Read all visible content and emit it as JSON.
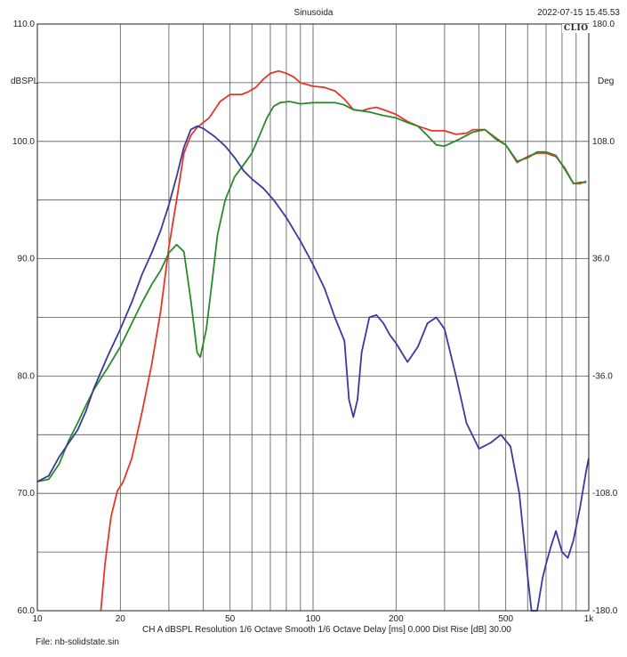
{
  "header": {
    "title": "Sinusoida",
    "datetime": "2022-07-15 15.45.53",
    "logo": "CLIO"
  },
  "footer": {
    "settings": "CH A  dBSPL  Resolution 1/6 Octave   Smooth 1/6 Octave   Delay [ms] 0.000   Dist Rise [dB] 30.00",
    "file": "File: nb-solidstate.sin"
  },
  "chart_data": {
    "type": "line",
    "title": "Sinusoida",
    "x_scale": "log",
    "xlim": [
      10,
      1000
    ],
    "x_tick_labels": [
      {
        "value": 10,
        "label": "10"
      },
      {
        "value": 20,
        "label": "20"
      },
      {
        "value": 50,
        "label": "50"
      },
      {
        "value": 100,
        "label": "100"
      },
      {
        "value": 200,
        "label": "200"
      },
      {
        "value": 500,
        "label": "500"
      },
      {
        "value": 1000,
        "label": "1k"
      }
    ],
    "y_left": {
      "unit": "dBSPL",
      "ylim": [
        60,
        110
      ],
      "tick_labels": [
        {
          "value": 60,
          "label": "60.0"
        },
        {
          "value": 70,
          "label": "70.0"
        },
        {
          "value": 80,
          "label": "80.0"
        },
        {
          "value": 90,
          "label": "90.0"
        },
        {
          "value": 100,
          "label": "100.0"
        },
        {
          "value": 110,
          "label": "110.0"
        }
      ]
    },
    "y_right": {
      "unit": "Deg",
      "ylim": [
        -180,
        180
      ],
      "tick_labels": [
        {
          "value": 180,
          "label": "180.0"
        },
        {
          "value": 108,
          "label": "108.0"
        },
        {
          "value": 36,
          "label": "36.0"
        },
        {
          "value": -36,
          "label": "-36.0"
        },
        {
          "value": -108,
          "label": "-108.0"
        },
        {
          "value": -180,
          "label": "-180.0"
        }
      ]
    },
    "grid": true,
    "series": [
      {
        "color": "#e8352b",
        "points": [
          [
            17.0,
            60
          ],
          [
            17.6,
            64
          ],
          [
            18.5,
            68
          ],
          [
            19.5,
            70.2
          ],
          [
            20.5,
            71
          ],
          [
            22,
            73
          ],
          [
            24,
            77
          ],
          [
            26,
            81
          ],
          [
            28,
            85.5
          ],
          [
            30,
            91
          ],
          [
            32,
            95
          ],
          [
            34,
            99
          ],
          [
            36,
            100.5
          ],
          [
            38,
            101.2
          ],
          [
            42,
            102
          ],
          [
            46,
            103.4
          ],
          [
            50,
            104
          ],
          [
            55,
            104
          ],
          [
            58,
            104.2
          ],
          [
            62,
            104.6
          ],
          [
            66,
            105.3
          ],
          [
            70,
            105.8
          ],
          [
            75,
            106
          ],
          [
            80,
            105.8
          ],
          [
            85,
            105.5
          ],
          [
            90,
            105
          ],
          [
            100,
            104.7
          ],
          [
            110,
            104.6
          ],
          [
            120,
            104.3
          ],
          [
            130,
            103.6
          ],
          [
            140,
            102.7
          ],
          [
            150,
            102.6
          ],
          [
            160,
            102.8
          ],
          [
            170,
            102.9
          ],
          [
            185,
            102.6
          ],
          [
            200,
            102.3
          ],
          [
            220,
            101.7
          ],
          [
            240,
            101.3
          ],
          [
            270,
            100.9
          ],
          [
            300,
            100.9
          ],
          [
            330,
            100.6
          ],
          [
            360,
            100.7
          ],
          [
            380,
            101
          ],
          [
            420,
            101
          ],
          [
            460,
            100.3
          ],
          [
            500,
            99.7
          ],
          [
            550,
            98.2
          ],
          [
            600,
            98.7
          ],
          [
            650,
            99
          ],
          [
            700,
            99
          ],
          [
            760,
            98.7
          ],
          [
            820,
            97.7
          ],
          [
            880,
            96.4
          ],
          [
            930,
            96.4
          ],
          [
            980,
            96.6
          ]
        ]
      },
      {
        "color": "#2a8a2a",
        "points": [
          [
            10,
            71
          ],
          [
            11,
            71.2
          ],
          [
            12,
            72.5
          ],
          [
            13,
            74.5
          ],
          [
            14,
            76
          ],
          [
            15,
            77.5
          ],
          [
            16,
            78.8
          ],
          [
            17,
            79.8
          ],
          [
            18,
            80.7
          ],
          [
            20,
            82.5
          ],
          [
            22,
            84.5
          ],
          [
            24,
            86.3
          ],
          [
            26,
            87.8
          ],
          [
            28,
            89
          ],
          [
            30,
            90.5
          ],
          [
            32,
            91.2
          ],
          [
            34,
            90.6
          ],
          [
            36,
            86.5
          ],
          [
            38,
            82
          ],
          [
            39,
            81.6
          ],
          [
            41,
            84
          ],
          [
            43,
            88
          ],
          [
            45,
            92
          ],
          [
            48,
            95
          ],
          [
            52,
            97
          ],
          [
            56,
            98
          ],
          [
            60,
            99
          ],
          [
            64,
            100.5
          ],
          [
            68,
            102
          ],
          [
            72,
            103
          ],
          [
            76,
            103.3
          ],
          [
            82,
            103.4
          ],
          [
            90,
            103.2
          ],
          [
            100,
            103.3
          ],
          [
            110,
            103.3
          ],
          [
            120,
            103.3
          ],
          [
            130,
            103.1
          ],
          [
            140,
            102.7
          ],
          [
            160,
            102.5
          ],
          [
            180,
            102.2
          ],
          [
            200,
            102
          ],
          [
            220,
            101.6
          ],
          [
            240,
            101.3
          ],
          [
            260,
            100.5
          ],
          [
            280,
            99.7
          ],
          [
            300,
            99.6
          ],
          [
            320,
            99.9
          ],
          [
            340,
            100.2
          ],
          [
            360,
            100.5
          ],
          [
            380,
            100.8
          ],
          [
            420,
            101
          ],
          [
            460,
            100.2
          ],
          [
            500,
            99.7
          ],
          [
            550,
            98.3
          ],
          [
            600,
            98.6
          ],
          [
            650,
            99.1
          ],
          [
            700,
            99.1
          ],
          [
            760,
            98.8
          ],
          [
            820,
            97.6
          ],
          [
            880,
            96.4
          ],
          [
            930,
            96.5
          ],
          [
            980,
            96.5
          ]
        ]
      },
      {
        "color": "#3a3a9e",
        "points": [
          [
            10,
            71
          ],
          [
            11,
            71.5
          ],
          [
            12,
            73.1
          ],
          [
            13,
            74.3
          ],
          [
            14,
            75.4
          ],
          [
            15,
            77
          ],
          [
            16,
            78.9
          ],
          [
            18,
            81.7
          ],
          [
            20,
            84
          ],
          [
            22,
            86.3
          ],
          [
            24,
            88.7
          ],
          [
            26,
            90.5
          ],
          [
            28,
            92.4
          ],
          [
            30,
            94.6
          ],
          [
            32,
            97
          ],
          [
            34,
            99.5
          ],
          [
            36,
            101
          ],
          [
            38,
            101.3
          ],
          [
            40,
            101.1
          ],
          [
            44,
            100.4
          ],
          [
            48,
            99.6
          ],
          [
            52,
            98.6
          ],
          [
            56,
            97.5
          ],
          [
            60,
            96.8
          ],
          [
            66,
            96
          ],
          [
            72,
            95
          ],
          [
            80,
            93.5
          ],
          [
            90,
            91.5
          ],
          [
            100,
            89.5
          ],
          [
            110,
            87.5
          ],
          [
            120,
            85
          ],
          [
            130,
            83
          ],
          [
            135,
            78
          ],
          [
            140,
            76.5
          ],
          [
            145,
            78
          ],
          [
            150,
            82
          ],
          [
            160,
            85
          ],
          [
            170,
            85.2
          ],
          [
            180,
            84.5
          ],
          [
            190,
            83.5
          ],
          [
            200,
            82.8
          ],
          [
            220,
            81.2
          ],
          [
            240,
            82.5
          ],
          [
            260,
            84.5
          ],
          [
            280,
            85
          ],
          [
            300,
            84
          ],
          [
            330,
            80
          ],
          [
            360,
            76
          ],
          [
            400,
            73.8
          ],
          [
            440,
            74.3
          ],
          [
            480,
            75
          ],
          [
            520,
            74
          ],
          [
            560,
            70
          ],
          [
            600,
            63
          ],
          [
            620,
            59.2
          ],
          [
            650,
            60
          ],
          [
            680,
            62.8
          ],
          [
            700,
            64
          ],
          [
            730,
            65.5
          ],
          [
            760,
            66.8
          ],
          [
            800,
            65
          ],
          [
            840,
            64.5
          ],
          [
            880,
            66
          ],
          [
            930,
            68.8
          ],
          [
            980,
            72
          ],
          [
            1000,
            73
          ]
        ]
      }
    ]
  }
}
